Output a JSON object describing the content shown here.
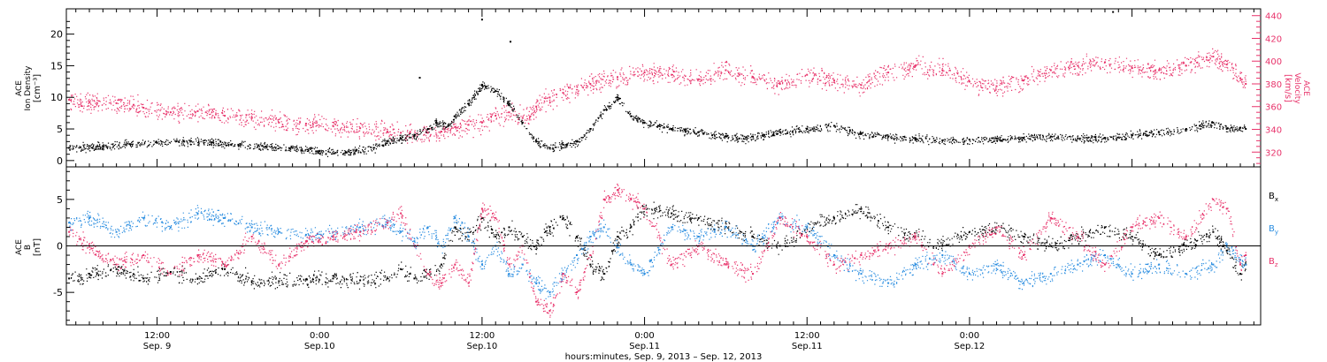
{
  "chart_data": [
    {
      "type": "scatter",
      "panel": "top",
      "left_axis": {
        "label_lines": [
          "ACE",
          "Ion Density"
        ],
        "unit": "[cm⁻³]",
        "ylim": [
          -1,
          24
        ],
        "ticks": [
          0,
          5,
          10,
          15,
          20
        ],
        "color": "#000000"
      },
      "right_axis": {
        "label_lines": [
          "ACE",
          "Velocity"
        ],
        "unit": "[km/s]",
        "ylim": [
          307,
          446
        ],
        "ticks": [
          320,
          340,
          360,
          380,
          400,
          420,
          440
        ],
        "color": "#e8336b"
      },
      "x_unit": "hours since Sep. 9, 2013 00:00 UT",
      "xlim": [
        5.3,
        93.5
      ],
      "series": [
        {
          "name_hidden": "ion density",
          "axis": "left",
          "color": "#000000",
          "x": [
            5.5,
            8,
            10,
            12,
            14,
            16,
            18,
            20,
            22,
            24,
            26,
            28,
            29,
            30,
            31,
            32,
            32.6,
            33.5,
            34,
            35,
            36,
            37,
            38,
            39,
            40,
            41,
            42,
            43,
            44,
            45,
            46,
            47,
            48,
            49,
            50,
            51,
            52,
            53,
            54,
            55,
            56,
            58,
            60,
            62,
            64,
            66,
            68,
            70,
            72,
            74,
            76,
            78,
            80,
            82,
            84,
            86,
            88,
            89,
            90,
            91,
            92,
            92.4
          ],
          "values": [
            2,
            2.3,
            2.6,
            2.8,
            3.0,
            2.9,
            2.5,
            2.2,
            2.0,
            1.5,
            1.3,
            2.0,
            3.0,
            3.5,
            4.0,
            5.0,
            6.0,
            5.5,
            7.0,
            9.0,
            12.0,
            11.0,
            9.0,
            6.0,
            3.0,
            2.0,
            2.5,
            3.0,
            5.0,
            8.0,
            10.0,
            7.0,
            6.0,
            5.5,
            5.0,
            4.8,
            4.5,
            4.0,
            3.8,
            3.5,
            3.8,
            4.5,
            5.0,
            5.5,
            4.2,
            3.8,
            3.5,
            3.2,
            3.3,
            3.5,
            3.6,
            3.8,
            3.5,
            3.6,
            4.0,
            4.5,
            5.0,
            5.5,
            6.0,
            5.0,
            5.2,
            5.0
          ]
        },
        {
          "name_hidden": "velocity",
          "axis": "right",
          "color": "#e8336b",
          "x": [
            5.5,
            7,
            9,
            11,
            13,
            15,
            17,
            19,
            21,
            23,
            25,
            27,
            29,
            30,
            31,
            32,
            33,
            34,
            35,
            36,
            37,
            38,
            39,
            40,
            41,
            42,
            44,
            46,
            48,
            50,
            52,
            54,
            55,
            56,
            58,
            60,
            62,
            64,
            66,
            68,
            70,
            72,
            74,
            76,
            78,
            80,
            82,
            84,
            86,
            88,
            90,
            91,
            92,
            92.4
          ],
          "values": [
            366,
            364,
            363,
            359,
            355,
            356,
            352,
            350,
            346,
            345,
            343,
            341,
            338,
            337,
            335,
            337,
            338,
            342,
            344,
            346,
            352,
            355,
            350,
            360,
            368,
            372,
            380,
            386,
            390,
            388,
            384,
            392,
            388,
            386,
            380,
            388,
            383,
            379,
            390,
            396,
            392,
            382,
            378,
            383,
            392,
            396,
            399,
            394,
            392,
            396,
            404,
            397,
            385,
            380
          ]
        }
      ],
      "annotations": [
        {
          "x": 36.0,
          "y": 22.3
        },
        {
          "x": 31.4,
          "y": 13.1
        },
        {
          "x": 82.6,
          "y": 23.5
        },
        {
          "x": 38.1,
          "y": 18.8
        }
      ],
      "grid": false
    },
    {
      "type": "scatter",
      "panel": "bottom",
      "left_axis": {
        "label_lines": [
          "ACE",
          "B"
        ],
        "unit": "[nT]",
        "ylim": [
          -8.5,
          8.5
        ],
        "ticks": [
          -5,
          0,
          5
        ],
        "color": "#000000"
      },
      "xlim": [
        5.3,
        93.5
      ],
      "zero_line": true,
      "series": [
        {
          "name": "B",
          "sub": "x",
          "color": "#000000",
          "x": [
            5.5,
            7,
            9,
            11,
            13,
            15,
            17,
            19,
            21,
            23,
            25,
            27,
            29,
            30,
            31,
            32,
            33,
            34,
            35,
            36,
            37,
            38,
            39,
            40,
            41,
            42,
            43,
            44,
            45,
            46,
            47,
            48,
            50,
            52,
            54,
            56,
            58,
            60,
            62,
            64,
            66,
            68,
            70,
            72,
            74,
            76,
            78,
            80,
            82,
            84,
            86,
            88,
            90,
            91,
            92,
            92.4
          ],
          "values": [
            -3.5,
            -3,
            -2.5,
            -3.5,
            -2.8,
            -3.5,
            -2.5,
            -3.8,
            -3.8,
            -3.6,
            -3.5,
            -3.7,
            -3.5,
            -2.5,
            -3.5,
            -3,
            -2,
            2,
            1,
            3,
            1,
            2,
            1,
            0,
            2,
            3,
            1,
            -2,
            -3,
            1,
            2,
            4,
            3.5,
            3,
            2,
            1,
            0,
            2,
            3,
            4,
            2,
            1,
            0,
            1.5,
            2,
            1,
            0,
            1,
            2,
            1,
            -1,
            0,
            1.5,
            -0.5,
            -3,
            -2
          ]
        },
        {
          "name": "B",
          "sub": "y",
          "color": "#2a8de0",
          "x": [
            5.5,
            7,
            9,
            11,
            13,
            15,
            17,
            19,
            21,
            23,
            25,
            27,
            29,
            30,
            31,
            32,
            33,
            34,
            35,
            36,
            37,
            38,
            39,
            40,
            41,
            42,
            43,
            44,
            45,
            46,
            47,
            48,
            50,
            52,
            54,
            56,
            58,
            60,
            62,
            64,
            66,
            68,
            70,
            72,
            74,
            76,
            78,
            80,
            82,
            84,
            86,
            88,
            90,
            91,
            92,
            92.4
          ],
          "values": [
            2.5,
            3,
            1.5,
            3,
            2,
            3.5,
            3,
            2,
            1.5,
            1.2,
            1.5,
            2,
            2.5,
            1.5,
            0.5,
            2,
            0,
            3,
            1,
            -2,
            0,
            -3,
            -2,
            -4,
            -5,
            -3,
            -1,
            1,
            2,
            0,
            -2,
            -3,
            2,
            1,
            2,
            0,
            3,
            2,
            -1,
            -3,
            -4,
            -2,
            -1,
            -3,
            -2,
            -4,
            -3,
            -2,
            -1,
            -3,
            -2,
            -3,
            -2,
            0,
            -1.5,
            -2
          ]
        },
        {
          "name": "B",
          "sub": "z",
          "color": "#e8336b",
          "x": [
            5.5,
            7,
            9,
            11,
            13,
            15,
            17,
            19,
            21,
            23,
            25,
            27,
            29,
            30,
            31,
            32,
            33,
            34,
            35,
            36,
            37,
            38,
            39,
            40,
            41,
            42,
            43,
            44,
            45,
            46,
            47,
            48,
            50,
            52,
            54,
            56,
            58,
            60,
            62,
            64,
            66,
            68,
            70,
            72,
            74,
            76,
            78,
            80,
            82,
            84,
            86,
            88,
            90,
            91,
            92,
            92.4
          ],
          "values": [
            1.5,
            0,
            -2,
            -1,
            -3,
            -1,
            -2,
            1,
            -2,
            0.5,
            1,
            1.5,
            2.5,
            3.5,
            0,
            -3,
            -4,
            -2,
            -4,
            4,
            3,
            -2,
            0,
            -6,
            -7,
            -3,
            -5,
            -1,
            5,
            6,
            5,
            4,
            -2,
            0,
            -2,
            -3,
            3,
            1,
            -2,
            -1,
            0,
            1,
            -3,
            0,
            2,
            -1,
            3,
            1,
            -2,
            2,
            3,
            1,
            5,
            4,
            -2,
            -1
          ]
        }
      ],
      "grid": false
    }
  ],
  "x_ticks": [
    {
      "x": 12,
      "time": "12:00",
      "date": "Sep. 9"
    },
    {
      "x": 24,
      "time": "0:00",
      "date": "Sep.10"
    },
    {
      "x": 36,
      "time": "12:00",
      "date": "Sep.10"
    },
    {
      "x": 48,
      "time": "0:00",
      "date": "Sep.11"
    },
    {
      "x": 60,
      "time": "12:00",
      "date": "Sep.11"
    },
    {
      "x": 72,
      "time": "0:00",
      "date": "Sep.12"
    }
  ],
  "xlabel": "hours:minutes, Sep.  9, 2013 – Sep. 12, 2013"
}
